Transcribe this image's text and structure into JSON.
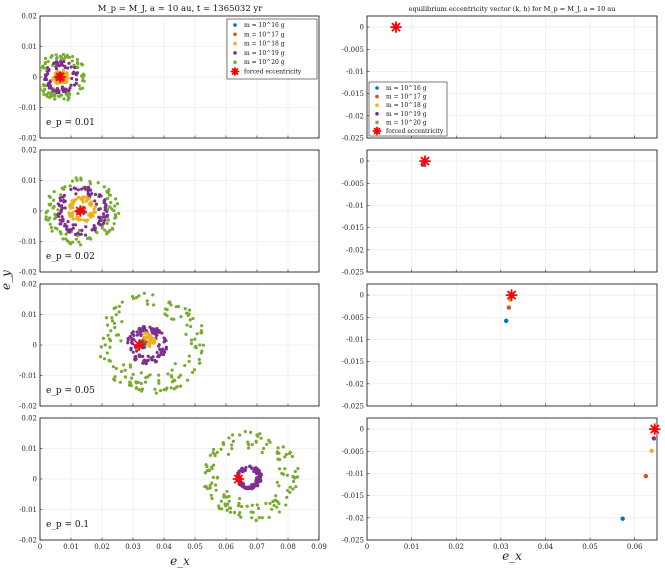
{
  "figure": {
    "left_title": "M_p = M_J, a ≃ 10 au, t = 1365032 yr",
    "right_title": "equilibrium eccentricity vector (k, h) for M_p = M_J, a = 10 au",
    "left_xlabel": "e_x",
    "left_ylabel": "e_y",
    "right_xlabel": "e_x"
  },
  "legend": {
    "entries": [
      {
        "label": "m = 10^16 g",
        "color": "#0072BD"
      },
      {
        "label": "m = 10^17 g",
        "color": "#D95319"
      },
      {
        "label": "m = 10^18 g",
        "color": "#EDB120"
      },
      {
        "label": "m = 10^19 g",
        "color": "#7E2F8E"
      },
      {
        "label": "m = 10^20 g",
        "color": "#77AC30"
      },
      {
        "label": "forced eccentricity",
        "color": "#FF0000"
      }
    ]
  },
  "chart_data": [
    {
      "type": "scatter",
      "panel": "left",
      "annotation": "e_p = 0.01",
      "xlim": [
        0,
        0.09
      ],
      "ylim": [
        -0.02,
        0.02
      ],
      "xticks": [
        "0",
        "0.01",
        "0.02",
        "0.03",
        "0.04",
        "0.05",
        "0.06",
        "0.07",
        "0.08",
        "0.09"
      ],
      "yticks": [
        "0.02",
        "0.01",
        "0",
        "-0.01",
        "-0.02"
      ],
      "forced": [
        0.0065,
        0.0
      ],
      "rings": [
        {
          "mass": "1e16",
          "center": [
            0.0065,
            0.0
          ],
          "radius": 0.0012,
          "n": 10
        },
        {
          "mass": "1e17",
          "center": [
            0.0065,
            0.0
          ],
          "radius": 0.0016,
          "n": 10
        },
        {
          "mass": "1e18",
          "center": [
            0.0068,
            0.0
          ],
          "radius": 0.003,
          "n": 70
        },
        {
          "mass": "1e19",
          "center": [
            0.0068,
            0.0
          ],
          "radius": 0.0055,
          "n": 70
        },
        {
          "mass": "1e20",
          "center": [
            0.0068,
            0.0
          ],
          "radius": 0.0082,
          "n": 90
        }
      ]
    },
    {
      "type": "scatter",
      "panel": "left",
      "annotation": "e_p = 0.02",
      "xlim": [
        0,
        0.09
      ],
      "ylim": [
        -0.02,
        0.02
      ],
      "xticks": [
        "0",
        "0.01",
        "0.02",
        "0.03",
        "0.04",
        "0.05",
        "0.06",
        "0.07",
        "0.08",
        "0.09"
      ],
      "yticks": [
        "0.02",
        "0.01",
        "0",
        "-0.01",
        "-0.02"
      ],
      "forced": [
        0.013,
        0.0
      ],
      "rings": [
        {
          "mass": "1e16",
          "center": [
            0.013,
            0.0
          ],
          "radius": 0.0015,
          "n": 10
        },
        {
          "mass": "1e17",
          "center": [
            0.013,
            0.0
          ],
          "radius": 0.0022,
          "n": 10
        },
        {
          "mass": "1e18",
          "center": [
            0.0135,
            0.0005
          ],
          "radius": 0.0045,
          "n": 70
        },
        {
          "mass": "1e19",
          "center": [
            0.0135,
            0.0
          ],
          "radius": 0.0085,
          "n": 100
        },
        {
          "mass": "1e20",
          "center": [
            0.0135,
            0.0
          ],
          "radius": 0.012,
          "n": 100
        }
      ]
    },
    {
      "type": "scatter",
      "panel": "left",
      "annotation": "e_p = 0.05",
      "xlim": [
        0,
        0.09
      ],
      "ylim": [
        -0.02,
        0.02
      ],
      "xticks": [
        "0",
        "0.01",
        "0.02",
        "0.03",
        "0.04",
        "0.05",
        "0.06",
        "0.07",
        "0.08",
        "0.09"
      ],
      "yticks": [
        "0.02",
        "0.01",
        "0",
        "-0.01",
        "-0.02"
      ],
      "forced": [
        0.032,
        0.0
      ],
      "rings": [
        {
          "mass": "1e16",
          "center": [
            0.033,
            0.0
          ],
          "radius": 0.0015,
          "n": 8
        },
        {
          "mass": "1e17",
          "center": [
            0.033,
            0.0
          ],
          "radius": 0.002,
          "n": 8
        },
        {
          "mass": "1e18",
          "center": [
            0.0345,
            0.0015
          ],
          "radius": 0.0028,
          "n": 45
        },
        {
          "mass": "1e19",
          "center": [
            0.0345,
            0.0
          ],
          "radius": 0.0065,
          "n": 110
        },
        {
          "mass": "1e20",
          "center": [
            0.036,
            0.0005
          ],
          "radius": 0.0175,
          "n": 140
        }
      ]
    },
    {
      "type": "scatter",
      "panel": "left",
      "annotation": "e_p = 0.1",
      "xlim": [
        0,
        0.09
      ],
      "ylim": [
        -0.02,
        0.02
      ],
      "xticks": [
        "0",
        "0.01",
        "0.02",
        "0.03",
        "0.04",
        "0.05",
        "0.06",
        "0.07",
        "0.08",
        "0.09"
      ],
      "yticks": [
        "0.02",
        "0.01",
        "0",
        "-0.01",
        "-0.02"
      ],
      "forced": [
        0.064,
        0.0
      ],
      "rings": [
        {
          "mass": "1e19",
          "center": [
            0.0675,
            0.0005
          ],
          "radius": 0.004,
          "n": 110
        },
        {
          "mass": "1e20",
          "center": [
            0.068,
            0.001
          ],
          "radius": 0.0155,
          "n": 140
        }
      ]
    },
    {
      "type": "scatter",
      "panel": "right",
      "xlim": [
        0,
        0.065
      ],
      "ylim": [
        -0.025,
        0.0025
      ],
      "yticks": [
        "0",
        "-0.005",
        "-0.01",
        "-0.015",
        "-0.02",
        "-0.025"
      ],
      "points": [
        {
          "mass": "1e16",
          "x": 0.0063,
          "y": 0.0001
        },
        {
          "mass": "1e17",
          "x": 0.0064,
          "y": 0.0001
        },
        {
          "mass": "1e18",
          "x": 0.0065,
          "y": 0.0001
        },
        {
          "mass": "1e19",
          "x": 0.0065,
          "y": 0.0001
        },
        {
          "mass": "1e20",
          "x": 0.0065,
          "y": 0.0001
        }
      ],
      "forced": [
        0.0065,
        0.0
      ]
    },
    {
      "type": "scatter",
      "panel": "right",
      "xlim": [
        0,
        0.065
      ],
      "ylim": [
        -0.025,
        0.0025
      ],
      "yticks": [
        "0",
        "-0.005",
        "-0.01",
        "-0.015",
        "-0.02",
        "-0.025"
      ],
      "points": [
        {
          "mass": "1e16",
          "x": 0.0125,
          "y": -0.0008
        },
        {
          "mass": "1e17",
          "x": 0.0126,
          "y": -0.0004
        },
        {
          "mass": "1e18",
          "x": 0.0128,
          "y": -0.0001
        },
        {
          "mass": "1e19",
          "x": 0.0129,
          "y": 0.0
        },
        {
          "mass": "1e20",
          "x": 0.013,
          "y": 0.0
        }
      ],
      "forced": [
        0.013,
        0.0
      ]
    },
    {
      "type": "scatter",
      "panel": "right",
      "xlim": [
        0,
        0.065
      ],
      "ylim": [
        -0.025,
        0.0025
      ],
      "yticks": [
        "0",
        "-0.005",
        "-0.01",
        "-0.015",
        "-0.02",
        "-0.025"
      ],
      "points": [
        {
          "mass": "1e16",
          "x": 0.0312,
          "y": -0.0058
        },
        {
          "mass": "1e17",
          "x": 0.0318,
          "y": -0.0028
        },
        {
          "mass": "1e18",
          "x": 0.0321,
          "y": -0.0011
        },
        {
          "mass": "1e19",
          "x": 0.0323,
          "y": -0.0003
        },
        {
          "mass": "1e20",
          "x": 0.0324,
          "y": 0.0
        }
      ],
      "forced": [
        0.0324,
        0.0
      ]
    },
    {
      "type": "scatter",
      "panel": "right",
      "xlim": [
        0,
        0.065
      ],
      "ylim": [
        -0.025,
        0.0025
      ],
      "xticks": [
        "0",
        "0.01",
        "0.02",
        "0.03",
        "0.04",
        "0.05",
        "0.06"
      ],
      "yticks": [
        "0",
        "-0.005",
        "-0.01",
        "-0.015",
        "-0.02",
        "-0.025"
      ],
      "points": [
        {
          "mass": "1e16",
          "x": 0.0573,
          "y": -0.0202
        },
        {
          "mass": "1e17",
          "x": 0.0625,
          "y": -0.0106
        },
        {
          "mass": "1e18",
          "x": 0.0638,
          "y": -0.0049
        },
        {
          "mass": "1e19",
          "x": 0.0643,
          "y": -0.0021
        },
        {
          "mass": "1e20",
          "x": 0.0645,
          "y": -0.0003
        }
      ],
      "forced": [
        0.0645,
        0.0
      ]
    }
  ]
}
